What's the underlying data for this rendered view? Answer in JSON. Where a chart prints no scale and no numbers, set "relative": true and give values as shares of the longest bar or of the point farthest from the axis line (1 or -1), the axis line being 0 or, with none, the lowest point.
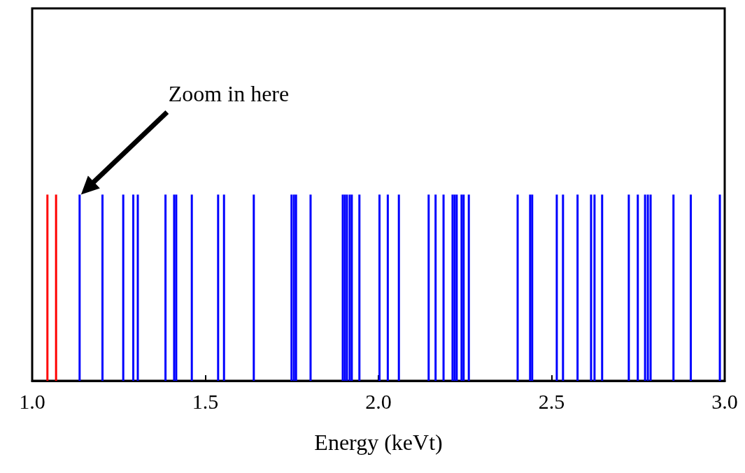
{
  "chart_data": {
    "type": "bar",
    "relative": true,
    "xlabel": "Energy (keVt)",
    "xlim": [
      1.0,
      3.0
    ],
    "xticks": [
      {
        "value": 1.0,
        "label": "1.0"
      },
      {
        "value": 1.5,
        "label": "1.5"
      },
      {
        "value": 2.0,
        "label": "2.0"
      },
      {
        "value": 2.5,
        "label": "2.5"
      },
      {
        "value": 3.0,
        "label": "3.0"
      }
    ],
    "grid": false,
    "annotations": [
      "Zoom in here"
    ],
    "series": [
      {
        "color": "#ff0000",
        "x": [
          1.044,
          1.069
        ],
        "values": [
          1,
          1
        ]
      },
      {
        "color": "#0000ff",
        "x": [
          1.137,
          1.203,
          1.263,
          1.292,
          1.305,
          1.385,
          1.41,
          1.416,
          1.461,
          1.537,
          1.554,
          1.64,
          1.749,
          1.756,
          1.762,
          1.804,
          1.897,
          1.903,
          1.909,
          1.917,
          1.923,
          1.945,
          2.003,
          2.027,
          2.059,
          2.145,
          2.165,
          2.188,
          2.214,
          2.22,
          2.226,
          2.24,
          2.246,
          2.261,
          2.402,
          2.438,
          2.444,
          2.515,
          2.533,
          2.575,
          2.614,
          2.624,
          2.646,
          2.723,
          2.749,
          2.77,
          2.778,
          2.786,
          2.852,
          2.902,
          2.986
        ],
        "values": [
          1,
          1,
          1,
          1,
          1,
          1,
          1,
          1,
          1,
          1,
          1,
          1,
          1,
          1,
          1,
          1,
          1,
          1,
          1,
          1,
          1,
          1,
          1,
          1,
          1,
          1,
          1,
          1,
          1,
          1,
          1,
          1,
          1,
          1,
          1,
          1,
          1,
          1,
          1,
          1,
          1,
          1,
          1,
          1,
          1,
          1,
          1,
          1,
          1,
          1,
          1
        ]
      }
    ]
  }
}
